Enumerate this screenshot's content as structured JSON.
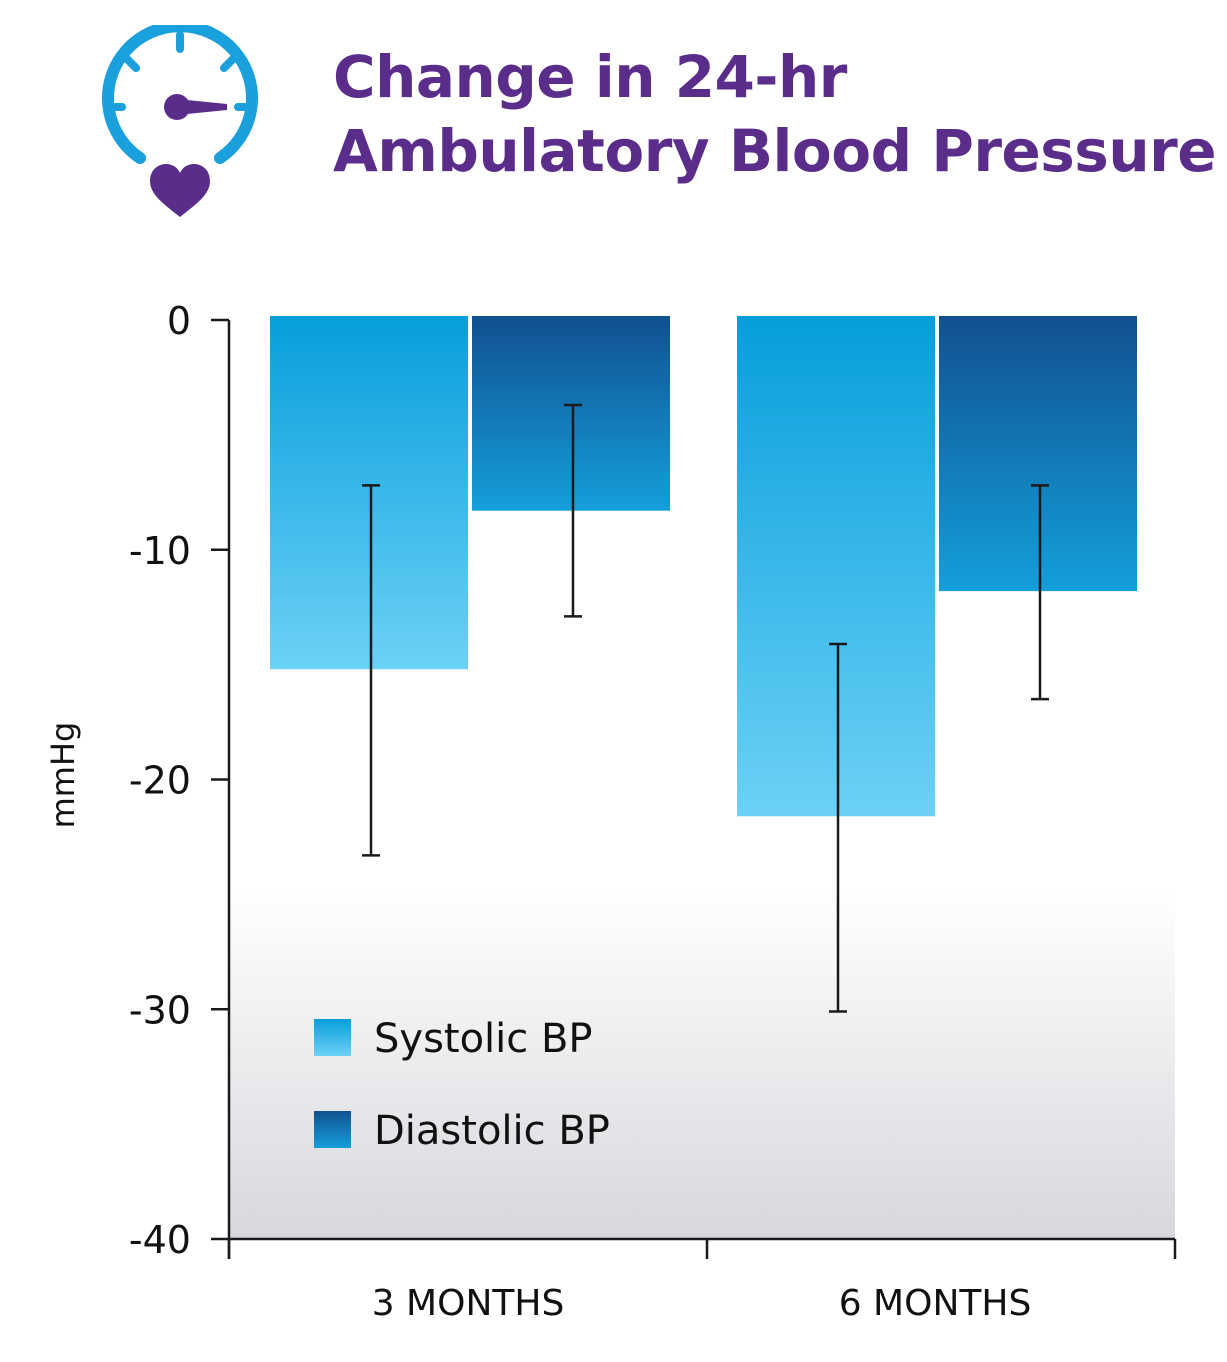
{
  "header": {
    "title_line1": "Change in 24-hr",
    "title_line2": "Ambulatory Blood Pressure",
    "icon": "gauge-heart-icon",
    "title_color": "#5b2d8a",
    "icon_color": "#1aa0dc",
    "heart_color": "#5b2d8a"
  },
  "chart_data": {
    "type": "bar",
    "categories": [
      "3 MONTHS",
      "6 MONTHS"
    ],
    "series": [
      {
        "name": "Systolic BP",
        "values": [
          -15.2,
          -21.6
        ],
        "error_low": [
          -23.3,
          -30.1
        ],
        "error_high": [
          -7.2,
          -14.1
        ],
        "color_top": "#079edc",
        "color_bottom": "#6cd1f6"
      },
      {
        "name": "Diastolic BP",
        "values": [
          -8.3,
          -11.8
        ],
        "error_low": [
          -12.9,
          -16.5
        ],
        "error_high": [
          -3.7,
          -7.2
        ],
        "color_top": "#11508f",
        "color_bottom": "#149fdb"
      }
    ],
    "ylabel": "mmHg",
    "xlabel": "",
    "ylim": [
      -40,
      0
    ],
    "yticks": [
      0,
      -10,
      -20,
      -30,
      -40
    ],
    "ytick_labels": [
      "0",
      "-10",
      "-20",
      "-30",
      "-40"
    ],
    "legend_position": "bottom-left inside plot",
    "grid": false
  }
}
